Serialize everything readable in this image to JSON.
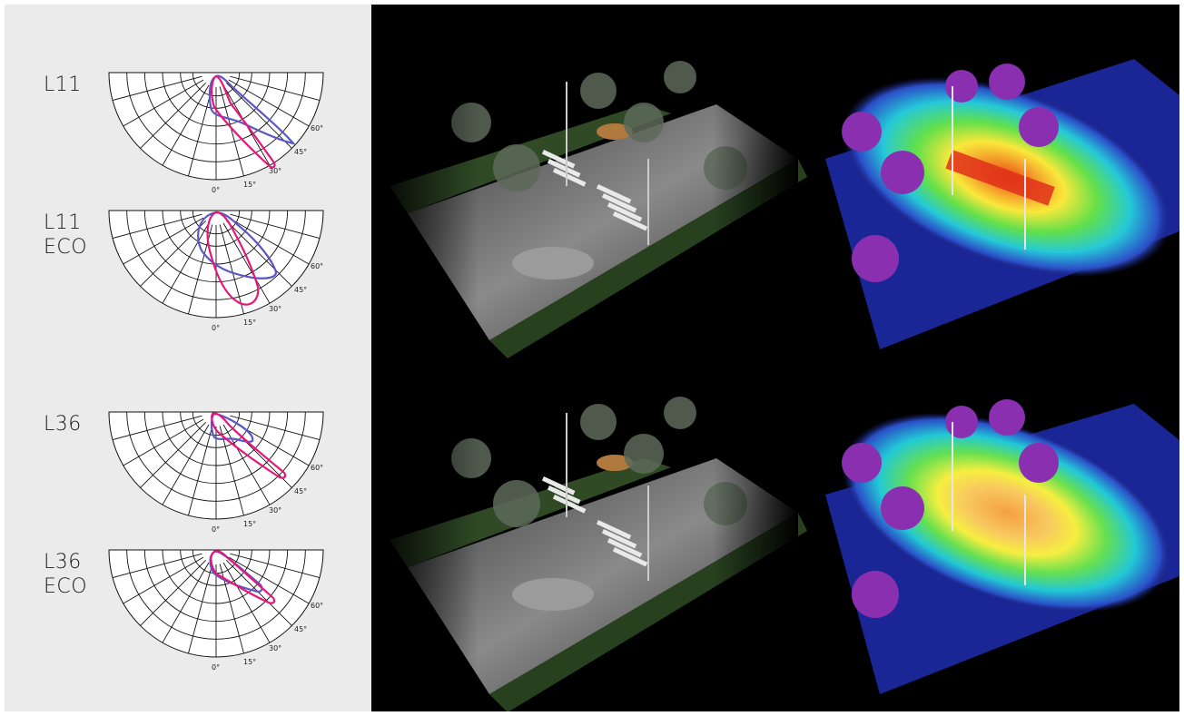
{
  "diagrams": [
    {
      "name_line1": "L11",
      "name_line2": ""
    },
    {
      "name_line1": "L11",
      "name_line2": "ECO"
    },
    {
      "name_line1": "L36",
      "name_line2": ""
    },
    {
      "name_line1": "L36",
      "name_line2": "ECO"
    }
  ],
  "angle_labels": [
    "0°",
    "15°",
    "30°",
    "45°",
    "60°"
  ],
  "curve_colors": {
    "primary": "#e8167a",
    "secondary": "#5b57c6"
  },
  "scene_panels": [
    {
      "kind": "night-render-street-crossing"
    },
    {
      "kind": "false-color-illuminance-map"
    },
    {
      "kind": "night-render-street-crossing"
    },
    {
      "kind": "false-color-illuminance-map"
    }
  ]
}
